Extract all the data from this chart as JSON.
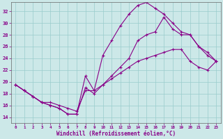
{
  "xlabel": "Windchill (Refroidissement éolien,°C)",
  "background_color": "#cce8e8",
  "grid_color": "#99cccc",
  "line_color": "#880088",
  "xlim": [
    -0.5,
    23.5
  ],
  "ylim": [
    13.0,
    33.5
  ],
  "yticks": [
    14,
    16,
    18,
    20,
    22,
    24,
    26,
    28,
    30,
    32
  ],
  "xticks": [
    0,
    1,
    2,
    3,
    4,
    5,
    6,
    7,
    8,
    9,
    10,
    11,
    12,
    13,
    14,
    15,
    16,
    17,
    18,
    19,
    20,
    21,
    22,
    23
  ],
  "line_dip_x": [
    0,
    1,
    2,
    3,
    4,
    5,
    6,
    7,
    8,
    9,
    10,
    11,
    12,
    13,
    14,
    15,
    16,
    17,
    18,
    19,
    20,
    21,
    22,
    23
  ],
  "line_dip_y": [
    19.5,
    18.5,
    17.5,
    16.5,
    16.0,
    15.5,
    14.5,
    14.5,
    19.0,
    18.0,
    19.5,
    21.0,
    22.5,
    24.0,
    27.0,
    28.0,
    28.5,
    31.0,
    29.0,
    28.0,
    28.0,
    26.0,
    24.5,
    23.5
  ],
  "line_peak_x": [
    0,
    1,
    2,
    3,
    4,
    5,
    6,
    7,
    8,
    9,
    10,
    11,
    12,
    13,
    14,
    15,
    16,
    17,
    18,
    19,
    20,
    21,
    22,
    23
  ],
  "line_peak_y": [
    19.5,
    18.5,
    17.5,
    16.5,
    16.0,
    15.5,
    14.5,
    14.5,
    21.0,
    18.5,
    24.5,
    27.0,
    29.5,
    31.5,
    33.0,
    33.5,
    32.5,
    31.5,
    30.0,
    28.5,
    28.0,
    26.0,
    25.0,
    23.5
  ],
  "line_flat_x": [
    0,
    1,
    2,
    3,
    4,
    5,
    6,
    7,
    8,
    9,
    10,
    11,
    12,
    13,
    14,
    15,
    16,
    17,
    18,
    19,
    20,
    21,
    22,
    23
  ],
  "line_flat_y": [
    19.5,
    18.5,
    17.5,
    16.5,
    16.5,
    16.0,
    15.5,
    15.0,
    18.5,
    18.5,
    19.5,
    20.5,
    21.5,
    22.5,
    23.5,
    24.0,
    24.5,
    25.0,
    25.5,
    25.5,
    23.5,
    22.5,
    22.0,
    23.5
  ]
}
